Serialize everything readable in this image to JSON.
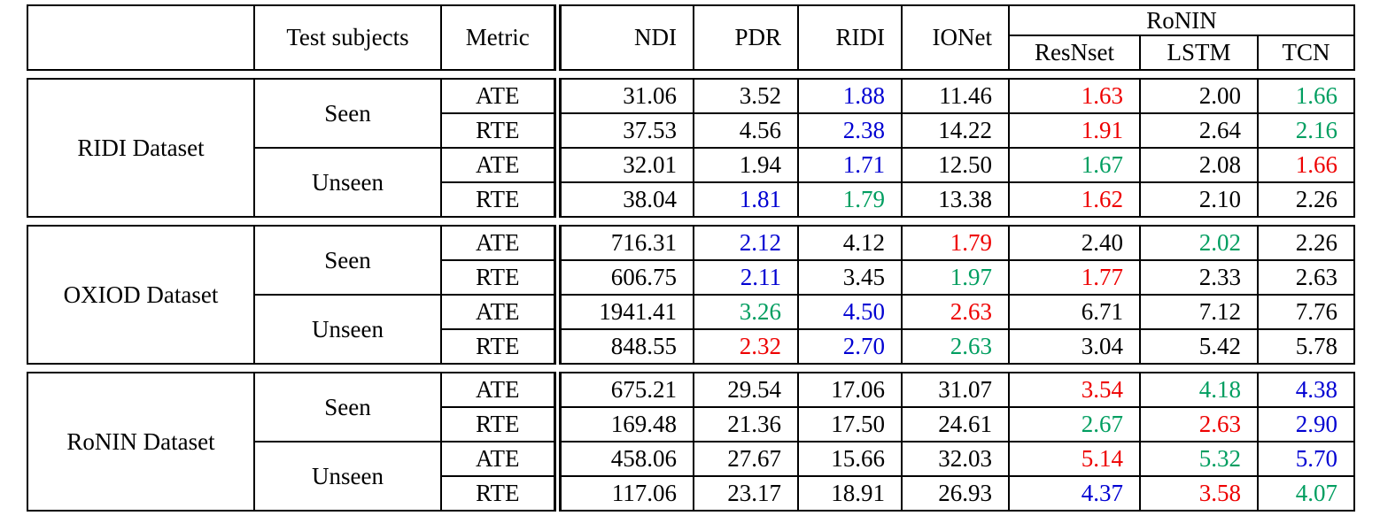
{
  "palette": {
    "black": "#000000",
    "red": "#ee0000",
    "green": "#009e60",
    "blue": "#0000d2"
  },
  "header": {
    "corner_label": "",
    "test_subjects_label": "Test subjects",
    "metric_label": "Metric",
    "methods": [
      "NDI",
      "PDR",
      "RIDI",
      "IONet"
    ],
    "ronin_group_label": "RoNIN",
    "ronin_variants": [
      "ResNset",
      "LSTM",
      "TCN"
    ]
  },
  "blocks": [
    {
      "dataset": "RIDI Dataset",
      "groups": [
        {
          "subject": "Seen",
          "rows": [
            {
              "metric": "ATE",
              "values": [
                "31.06",
                "3.52",
                "1.88",
                "11.46",
                "1.63",
                "2.00",
                "1.66"
              ],
              "colors": [
                "black",
                "black",
                "blue",
                "black",
                "red",
                "black",
                "green"
              ]
            },
            {
              "metric": "RTE",
              "values": [
                "37.53",
                "4.56",
                "2.38",
                "14.22",
                "1.91",
                "2.64",
                "2.16"
              ],
              "colors": [
                "black",
                "black",
                "blue",
                "black",
                "red",
                "black",
                "green"
              ]
            }
          ]
        },
        {
          "subject": "Unseen",
          "rows": [
            {
              "metric": "ATE",
              "values": [
                "32.01",
                "1.94",
                "1.71",
                "12.50",
                "1.67",
                "2.08",
                "1.66"
              ],
              "colors": [
                "black",
                "black",
                "blue",
                "black",
                "green",
                "black",
                "red"
              ]
            },
            {
              "metric": "RTE",
              "values": [
                "38.04",
                "1.81",
                "1.79",
                "13.38",
                "1.62",
                "2.10",
                "2.26"
              ],
              "colors": [
                "black",
                "blue",
                "green",
                "black",
                "red",
                "black",
                "black"
              ]
            }
          ]
        }
      ]
    },
    {
      "dataset": "OXIOD Dataset",
      "groups": [
        {
          "subject": "Seen",
          "rows": [
            {
              "metric": "ATE",
              "values": [
                "716.31",
                "2.12",
                "4.12",
                "1.79",
                "2.40",
                "2.02",
                "2.26"
              ],
              "colors": [
                "black",
                "blue",
                "black",
                "red",
                "black",
                "green",
                "black"
              ]
            },
            {
              "metric": "RTE",
              "values": [
                "606.75",
                "2.11",
                "3.45",
                "1.97",
                "1.77",
                "2.33",
                "2.63"
              ],
              "colors": [
                "black",
                "blue",
                "black",
                "green",
                "red",
                "black",
                "black"
              ]
            }
          ]
        },
        {
          "subject": "Unseen",
          "rows": [
            {
              "metric": "ATE",
              "values": [
                "1941.41",
                "3.26",
                "4.50",
                "2.63",
                "6.71",
                "7.12",
                "7.76"
              ],
              "colors": [
                "black",
                "green",
                "blue",
                "red",
                "black",
                "black",
                "black"
              ]
            },
            {
              "metric": "RTE",
              "values": [
                "848.55",
                "2.32",
                "2.70",
                "2.63",
                "3.04",
                "5.42",
                "5.78"
              ],
              "colors": [
                "black",
                "red",
                "blue",
                "green",
                "black",
                "black",
                "black"
              ]
            }
          ]
        }
      ]
    },
    {
      "dataset": "RoNIN Dataset",
      "groups": [
        {
          "subject": "Seen",
          "rows": [
            {
              "metric": "ATE",
              "values": [
                "675.21",
                "29.54",
                "17.06",
                "31.07",
                "3.54",
                "4.18",
                "4.38"
              ],
              "colors": [
                "black",
                "black",
                "black",
                "black",
                "red",
                "green",
                "blue"
              ]
            },
            {
              "metric": "RTE",
              "values": [
                "169.48",
                "21.36",
                "17.50",
                "24.61",
                "2.67",
                "2.63",
                "2.90"
              ],
              "colors": [
                "black",
                "black",
                "black",
                "black",
                "green",
                "red",
                "blue"
              ]
            }
          ]
        },
        {
          "subject": "Unseen",
          "rows": [
            {
              "metric": "ATE",
              "values": [
                "458.06",
                "27.67",
                "15.66",
                "32.03",
                "5.14",
                "5.32",
                "5.70"
              ],
              "colors": [
                "black",
                "black",
                "black",
                "black",
                "red",
                "green",
                "blue"
              ]
            },
            {
              "metric": "RTE",
              "values": [
                "117.06",
                "23.17",
                "18.91",
                "26.93",
                "4.37",
                "3.58",
                "4.07"
              ],
              "colors": [
                "black",
                "black",
                "black",
                "black",
                "blue",
                "red",
                "green"
              ]
            }
          ]
        }
      ]
    }
  ]
}
